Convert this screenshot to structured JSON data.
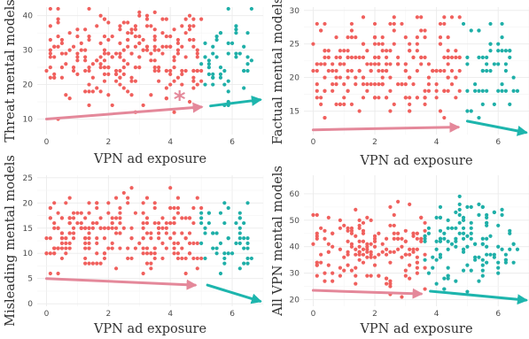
{
  "colors": {
    "low": "#F0605D",
    "high": "#1FAFA8",
    "trend_low": "#E4889A",
    "trend_high": "#1DB5AD",
    "star": "#E4889A"
  },
  "chart_data": [
    {
      "type": "scatter",
      "ylabel": "Threat mental models",
      "xlabel": "VPN ad exposure",
      "xlim": [
        -0.3,
        7.0
      ],
      "ylim": [
        5.5,
        42.5
      ],
      "xticks": [
        "0",
        "2",
        "4",
        "6"
      ],
      "yticks": [
        "10",
        "20",
        "30",
        "40"
      ],
      "split": 5.0,
      "trend_low": [
        [
          0,
          10
        ],
        [
          5.0,
          13.5
        ]
      ],
      "trend_high": [
        [
          5.3,
          13.8
        ],
        [
          6.9,
          15.6
        ]
      ],
      "annotation": "*",
      "annotation_at": [
        4.3,
        15.5
      ],
      "seed": 11,
      "n_low": 230,
      "n_high": 50,
      "y_center": 28,
      "y_spread": 6.5,
      "y_min": 8,
      "y_max": 42
    },
    {
      "type": "scatter",
      "ylabel": "Factual mental models",
      "xlabel": "VPN ad exposure",
      "xlim": [
        -0.3,
        7.0
      ],
      "ylim": [
        11.5,
        30.5
      ],
      "xticks": [
        "0",
        "2",
        "4",
        "6"
      ],
      "yticks": [
        "15",
        "20",
        "25",
        "30"
      ],
      "split": 4.8,
      "trend_low": [
        [
          0,
          12.2
        ],
        [
          4.7,
          12.6
        ]
      ],
      "trend_high": [
        [
          5.0,
          13.5
        ],
        [
          6.9,
          11.8
        ]
      ],
      "seed": 23,
      "n_low": 230,
      "n_high": 50,
      "y_center": 21.5,
      "y_spread": 3.5,
      "y_min": 12,
      "y_max": 30
    },
    {
      "type": "scatter",
      "ylabel": "Misleading mental models",
      "xlabel": "VPN ad exposure",
      "xlim": [
        -0.3,
        7.0
      ],
      "ylim": [
        -0.5,
        25.5
      ],
      "xticks": [
        "0",
        "2",
        "4",
        "6"
      ],
      "yticks": [
        "0",
        "5",
        "10",
        "15",
        "20",
        "25"
      ],
      "split": 5.0,
      "trend_low": [
        [
          0,
          5.0
        ],
        [
          4.8,
          3.7
        ]
      ],
      "trend_high": [
        [
          5.2,
          3.7
        ],
        [
          6.9,
          0.5
        ]
      ],
      "seed": 37,
      "n_low": 230,
      "n_high": 50,
      "y_center": 13.5,
      "y_spread": 3.5,
      "y_min": 2,
      "y_max": 25
    },
    {
      "type": "scatter",
      "ylabel": "All VPN mental models",
      "xlabel": "VPN ad exposure",
      "xlim": [
        -0.3,
        7.0
      ],
      "ylim": [
        17.5,
        67
      ],
      "xticks": [
        "0",
        "2",
        "4",
        "6"
      ],
      "yticks": [
        "20",
        "30",
        "40",
        "50",
        "60"
      ],
      "split": 3.6,
      "trend_low": [
        [
          0,
          23.5
        ],
        [
          3.5,
          22.2
        ]
      ],
      "trend_high": [
        [
          3.8,
          23.2
        ],
        [
          6.9,
          19.8
        ]
      ],
      "seed": 51,
      "n_low": 160,
      "n_high": 120,
      "y_center": 40,
      "y_spread": 7.5,
      "y_min": 19,
      "y_max": 65
    }
  ]
}
